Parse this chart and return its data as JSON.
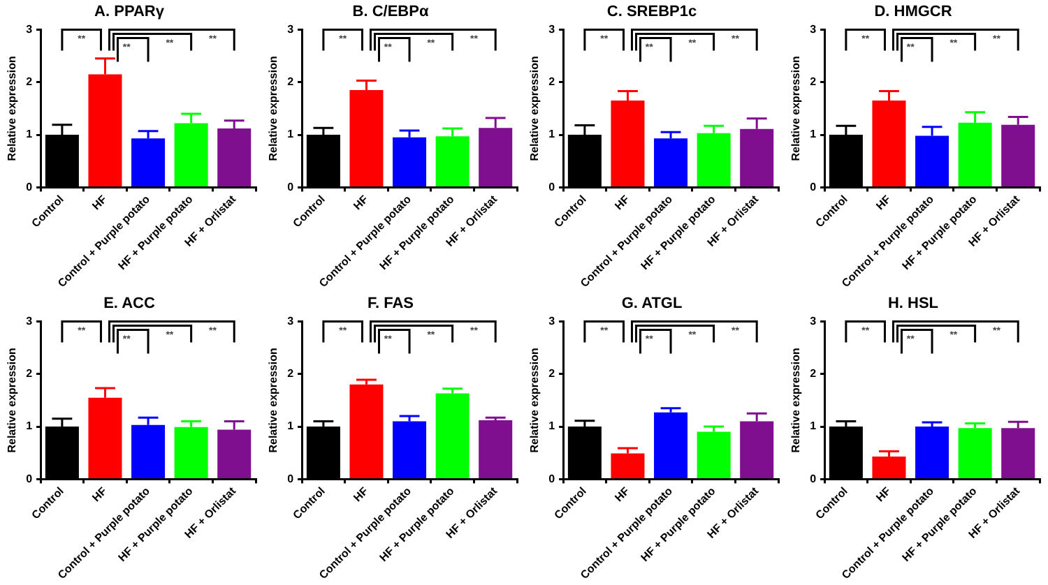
{
  "chart_data": [
    {
      "type": "bar",
      "title": "A. PPARγ",
      "ylabel": "Relative expression",
      "categories": [
        "Control",
        "HF",
        "Control + Purple potato",
        "HF + Purple potato",
        "HF + Orlistat"
      ],
      "values": [
        1.0,
        2.15,
        0.93,
        1.22,
        1.12
      ],
      "errors": [
        [
          1.0,
          1.19
        ],
        [
          2.15,
          2.45
        ],
        [
          0.93,
          1.07
        ],
        [
          1.22,
          1.4
        ],
        [
          1.12,
          1.27
        ]
      ],
      "colors": [
        "#000000",
        "#ff0000",
        "#0000ff",
        "#00ff00",
        "#7f0f8f"
      ],
      "ylim": [
        0,
        3
      ],
      "yticks": [
        0,
        1,
        2,
        3
      ],
      "grid": false,
      "annotations": [
        "**",
        "**",
        "**",
        "**"
      ]
    },
    {
      "type": "bar",
      "title": "B. C/EBPα",
      "ylabel": "Relative expression",
      "categories": [
        "Control",
        "HF",
        "Control + Purple potato",
        "HF + Purple potato",
        "HF + Orlistat"
      ],
      "values": [
        1.0,
        1.85,
        0.95,
        0.97,
        1.13
      ],
      "errors": [
        [
          1.0,
          1.13
        ],
        [
          1.85,
          2.03
        ],
        [
          0.95,
          1.08
        ],
        [
          0.97,
          1.12
        ],
        [
          1.13,
          1.32
        ]
      ],
      "colors": [
        "#000000",
        "#ff0000",
        "#0000ff",
        "#00ff00",
        "#7f0f8f"
      ],
      "ylim": [
        0,
        3
      ],
      "yticks": [
        0,
        1,
        2,
        3
      ],
      "grid": false,
      "annotations": [
        "**",
        "**",
        "**",
        "**"
      ]
    },
    {
      "type": "bar",
      "title": "C. SREBP1c",
      "ylabel": "Relative expression",
      "categories": [
        "Control",
        "HF",
        "Control + Purple potato",
        "HF + Purple potato",
        "HF + Orlistat"
      ],
      "values": [
        1.0,
        1.65,
        0.93,
        1.03,
        1.11
      ],
      "errors": [
        [
          1.0,
          1.18
        ],
        [
          1.65,
          1.83
        ],
        [
          0.93,
          1.05
        ],
        [
          1.03,
          1.17
        ],
        [
          1.11,
          1.31
        ]
      ],
      "colors": [
        "#000000",
        "#ff0000",
        "#0000ff",
        "#00ff00",
        "#7f0f8f"
      ],
      "ylim": [
        0,
        3
      ],
      "yticks": [
        0,
        1,
        2,
        3
      ],
      "grid": false,
      "annotations": [
        "**",
        "**",
        "**",
        "**"
      ]
    },
    {
      "type": "bar",
      "title": "D. HMGCR",
      "ylabel": "Relative expression",
      "categories": [
        "Control",
        "HF",
        "Control + Purple potato",
        "HF + Purple potato",
        "HF + Orlistat"
      ],
      "values": [
        1.0,
        1.65,
        0.98,
        1.23,
        1.19
      ],
      "errors": [
        [
          1.0,
          1.17
        ],
        [
          1.65,
          1.83
        ],
        [
          0.98,
          1.15
        ],
        [
          1.23,
          1.43
        ],
        [
          1.19,
          1.34
        ]
      ],
      "colors": [
        "#000000",
        "#ff0000",
        "#0000ff",
        "#00ff00",
        "#7f0f8f"
      ],
      "ylim": [
        0,
        3
      ],
      "yticks": [
        0,
        1,
        2,
        3
      ],
      "grid": false,
      "annotations": [
        "**",
        "**",
        "**",
        "**"
      ]
    },
    {
      "type": "bar",
      "title": "E. ACC",
      "ylabel": "Relative expression",
      "categories": [
        "Control",
        "HF",
        "Control + Purple potato",
        "HF + Purple potato",
        "HF + Orlistat"
      ],
      "values": [
        1.0,
        1.55,
        1.03,
        0.99,
        0.94
      ],
      "errors": [
        [
          1.0,
          1.15
        ],
        [
          1.55,
          1.73
        ],
        [
          1.03,
          1.17
        ],
        [
          0.99,
          1.1
        ],
        [
          0.94,
          1.1
        ]
      ],
      "colors": [
        "#000000",
        "#ff0000",
        "#0000ff",
        "#00ff00",
        "#7f0f8f"
      ],
      "ylim": [
        0,
        3
      ],
      "yticks": [
        0,
        1,
        2,
        3
      ],
      "grid": false,
      "annotations": [
        "**",
        "**",
        "**",
        "**"
      ]
    },
    {
      "type": "bar",
      "title": "F. FAS",
      "ylabel": "Relative expression",
      "categories": [
        "Control",
        "HF",
        "Control + Purple potato",
        "HF + Purple potato",
        "HF + Orlistat"
      ],
      "values": [
        1.0,
        1.8,
        1.1,
        1.63,
        1.12
      ],
      "errors": [
        [
          1.0,
          1.1
        ],
        [
          1.8,
          1.89
        ],
        [
          1.1,
          1.2
        ],
        [
          1.63,
          1.72
        ],
        [
          1.12,
          1.17
        ]
      ],
      "colors": [
        "#000000",
        "#ff0000",
        "#0000ff",
        "#00ff00",
        "#7f0f8f"
      ],
      "ylim": [
        0,
        3
      ],
      "yticks": [
        0,
        1,
        2,
        3
      ],
      "grid": false,
      "annotations": [
        "**",
        "**",
        "**",
        "**"
      ]
    },
    {
      "type": "bar",
      "title": "G. ATGL",
      "ylabel": "Relative expression",
      "categories": [
        "Control",
        "HF",
        "Control + Purple potato",
        "HF + Purple potato",
        "HF + Orlistat"
      ],
      "values": [
        1.0,
        0.49,
        1.27,
        0.9,
        1.1
      ],
      "errors": [
        [
          1.0,
          1.11
        ],
        [
          0.49,
          0.59
        ],
        [
          1.27,
          1.35
        ],
        [
          0.9,
          1.0
        ],
        [
          1.1,
          1.25
        ]
      ],
      "colors": [
        "#000000",
        "#ff0000",
        "#0000ff",
        "#00ff00",
        "#7f0f8f"
      ],
      "ylim": [
        0,
        3
      ],
      "yticks": [
        0,
        1,
        2,
        3
      ],
      "grid": false,
      "annotations": [
        "**",
        "**",
        "**",
        "**"
      ]
    },
    {
      "type": "bar",
      "title": "H. HSL",
      "ylabel": "Relative expression",
      "categories": [
        "Control",
        "HF",
        "Control + Purple potato",
        "HF + Purple potato",
        "HF + Orlistat"
      ],
      "values": [
        1.0,
        0.43,
        1.0,
        0.97,
        0.97
      ],
      "errors": [
        [
          1.0,
          1.1
        ],
        [
          0.43,
          0.53
        ],
        [
          1.0,
          1.08
        ],
        [
          0.97,
          1.06
        ],
        [
          0.97,
          1.09
        ]
      ],
      "colors": [
        "#000000",
        "#ff0000",
        "#0000ff",
        "#00ff00",
        "#7f0f8f"
      ],
      "ylim": [
        0,
        3
      ],
      "yticks": [
        0,
        1,
        2,
        3
      ],
      "grid": false,
      "annotations": [
        "**",
        "**",
        "**",
        "**"
      ]
    }
  ]
}
